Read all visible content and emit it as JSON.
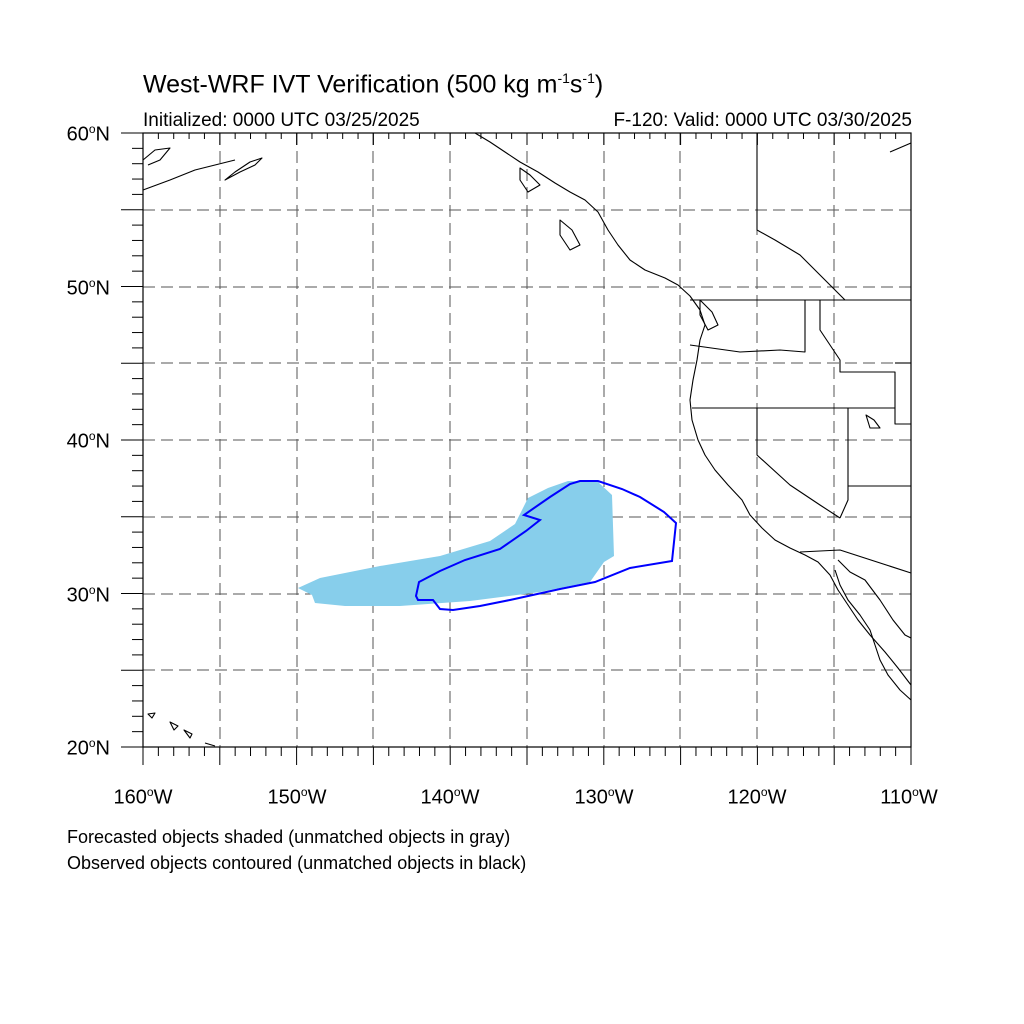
{
  "title": {
    "main": "West-WRF IVT Verification (500 kg m",
    "sup1": "-1",
    "mid": "s",
    "sup2": "-1",
    "end": ")"
  },
  "initialized": "Initialized: 0000 UTC 03/25/2025",
  "valid": "F-120: Valid: 0000 UTC 03/30/2025",
  "lat_labels": [
    "60",
    "50",
    "40",
    "30",
    "20"
  ],
  "lat_suffix": "N",
  "lon_labels": [
    "160",
    "150",
    "140",
    "130",
    "120",
    "110"
  ],
  "lon_suffix": "W",
  "degree_symbol": "o",
  "notes": [
    "Forecasted objects shaded (unmatched objects in gray)",
    "Observed objects contoured (unmatched objects in black)"
  ],
  "map": {
    "lon_range": [
      -160,
      -110
    ],
    "lat_range": [
      20,
      60
    ],
    "grid_step_deg": 5,
    "colors": {
      "forecast_fill": "#87ceeb",
      "observed_contour": "#0000ff",
      "coastline": "#000000",
      "grid": "#555555"
    }
  }
}
